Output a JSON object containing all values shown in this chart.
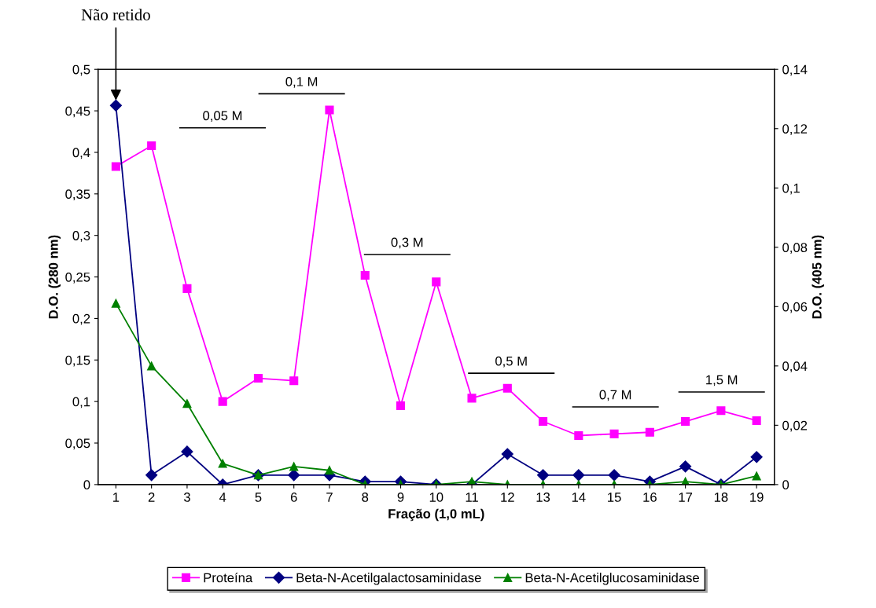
{
  "chart_data": {
    "type": "line",
    "categories": [
      "1",
      "2",
      "3",
      "4",
      "5",
      "6",
      "7",
      "8",
      "9",
      "10",
      "11",
      "12",
      "13",
      "14",
      "15",
      "16",
      "17",
      "18",
      "19"
    ],
    "xlabel": "Fração (1,0 mL)",
    "ylabel": "D.O. (280 nm)",
    "y2label": "D.O. (405 nm)",
    "ylim": [
      0,
      0.5
    ],
    "yticks": [
      0,
      {
        "value": 0.05,
        "label": "0,05"
      },
      {
        "value": 0.1,
        "label": "0,1"
      },
      {
        "value": 0.15,
        "label": "0,15"
      },
      {
        "value": 0.2,
        "label": "0,2"
      },
      {
        "value": 0.25,
        "label": "0,25"
      },
      {
        "value": 0.3,
        "label": "0,3"
      },
      {
        "value": 0.35,
        "label": "0,35"
      },
      {
        "value": 0.4,
        "label": "0,4"
      },
      {
        "value": 0.45,
        "label": "0,45"
      },
      {
        "value": 0.5,
        "label": "0,5"
      }
    ],
    "y2lim": [
      0,
      0.14
    ],
    "y2ticks": [
      0,
      {
        "value": 0.02,
        "label": "0,02"
      },
      {
        "value": 0.04,
        "label": "0,04"
      },
      {
        "value": 0.06,
        "label": "0,06"
      },
      {
        "value": 0.08,
        "label": "0,08"
      },
      {
        "value": 0.1,
        "label": "0,1"
      },
      {
        "value": 0.12,
        "label": "0,12"
      },
      {
        "value": 0.14,
        "label": "0,14"
      }
    ],
    "grid": false,
    "legend": "bottom",
    "series": [
      {
        "name": "Proteína",
        "color": "#ff00ff",
        "marker": "square",
        "values": [
          0.383,
          0.408,
          0.236,
          0.1,
          0.128,
          0.125,
          0.451,
          0.252,
          0.095,
          0.244,
          0.104,
          0.116,
          0.076,
          0.059,
          0.061,
          0.063,
          0.076,
          0.089,
          0.077
        ]
      },
      {
        "name": "Beta-N-Acetilgalactosaminidase",
        "color": "#000080",
        "marker": "diamond",
        "axis": "y2",
        "values": [
          0.1278,
          0.0032,
          0.0111,
          0,
          0.0032,
          0.0032,
          0.0032,
          0.001,
          0.001,
          0,
          0,
          0.0103,
          0.0032,
          0.0032,
          0.0032,
          0.001,
          0.0061,
          0,
          0.0093
        ]
      },
      {
        "name": "Beta-N-Acetilglucosaminidase",
        "color": "#008000",
        "marker": "triangle",
        "axis": "y2",
        "values": [
          0.0611,
          0.04,
          0.0273,
          0.0071,
          0.0032,
          0.0061,
          0.0048,
          0,
          0,
          0,
          0.001,
          0,
          0,
          0,
          0,
          0,
          0.001,
          0,
          0.0029
        ]
      }
    ],
    "annotations": [
      {
        "text": "Não retido",
        "x": "1",
        "y": 0.46
      },
      "0,05 M",
      "0,1 M",
      "0,3 M",
      "0,5 M",
      "0,7 M",
      "1,5 M"
    ]
  }
}
